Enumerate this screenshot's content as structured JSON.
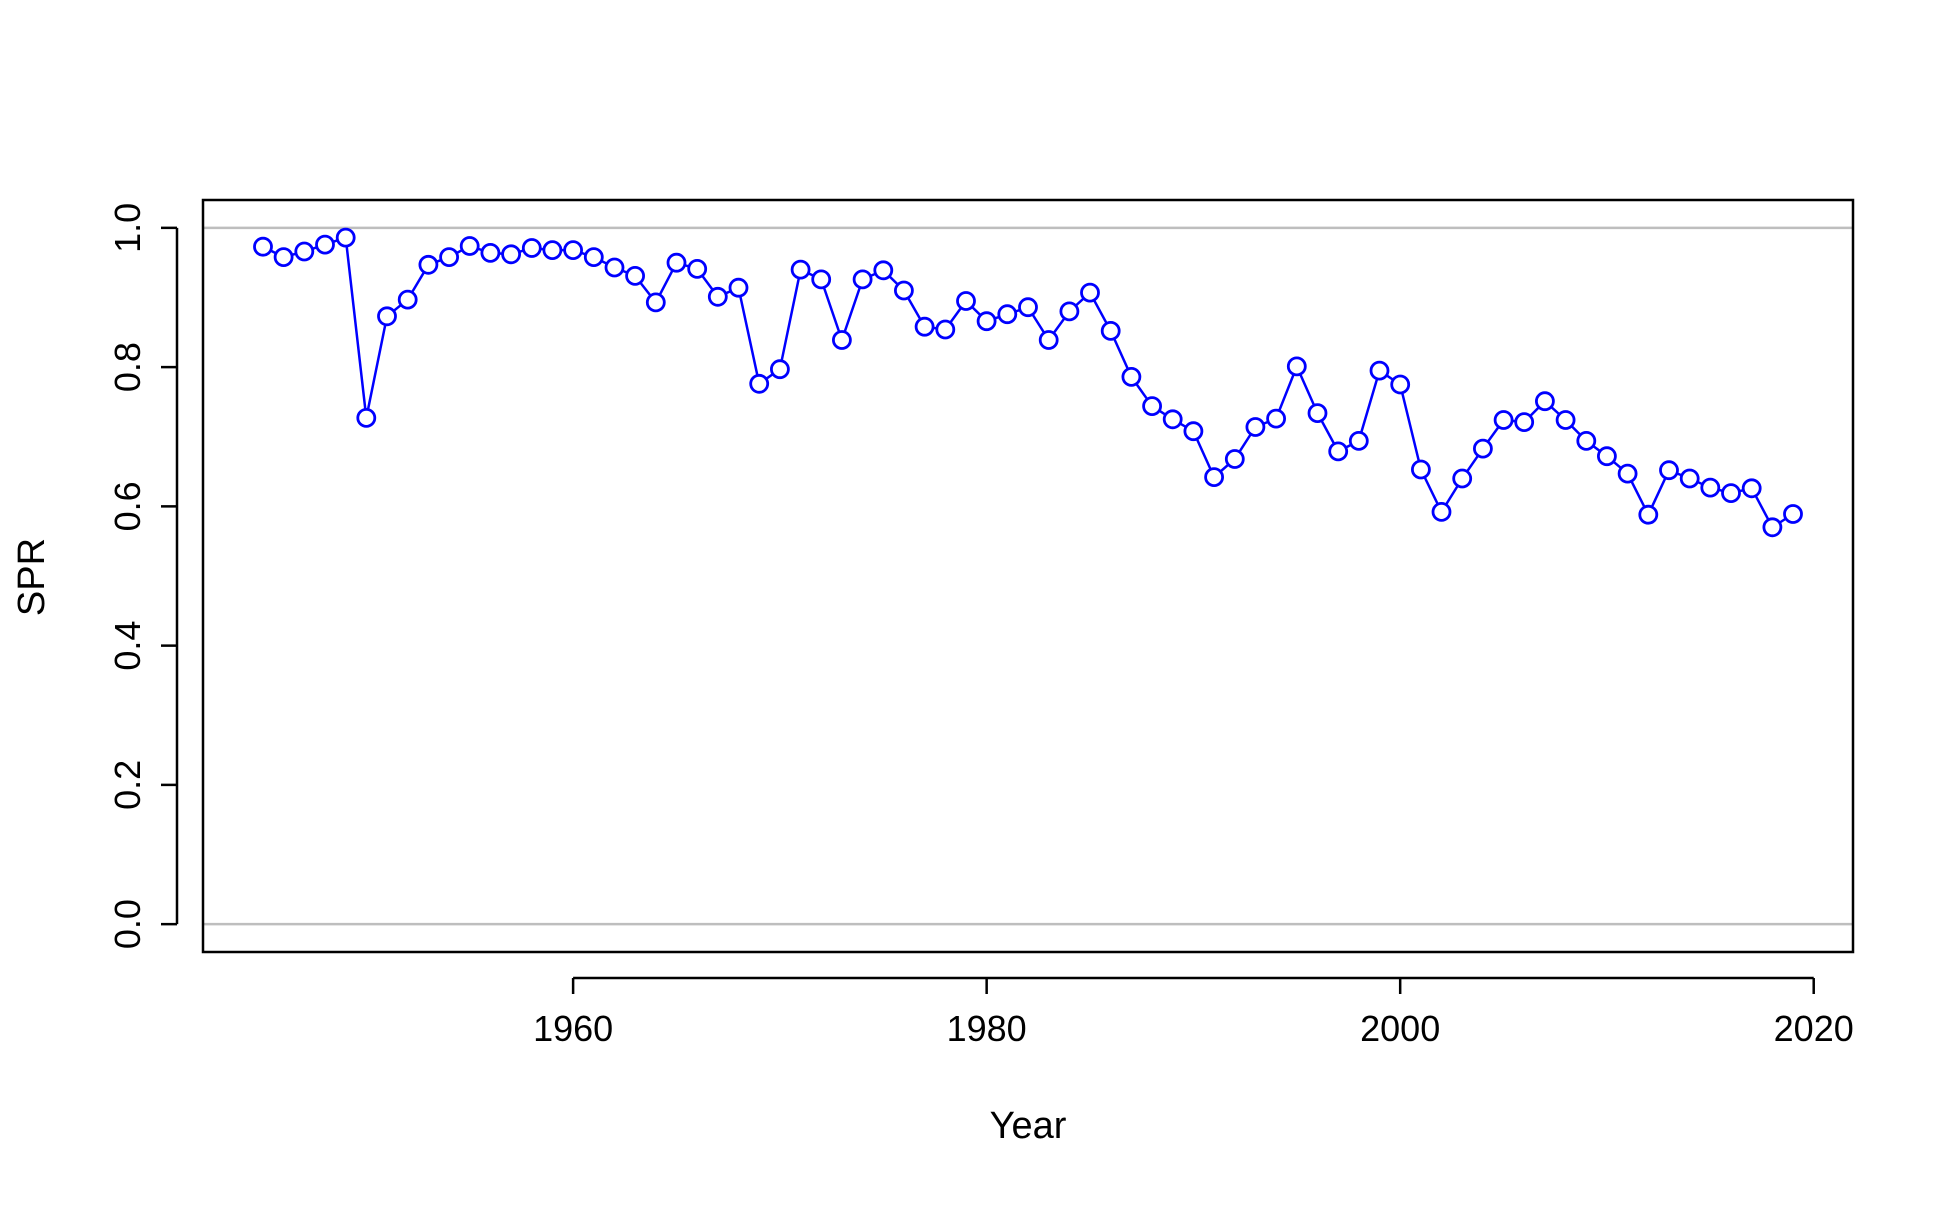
{
  "chart_data": {
    "type": "line",
    "xlabel": "Year",
    "ylabel": "SPR",
    "xlim": [
      1942.1,
      2021.9
    ],
    "ylim": [
      -0.04,
      1.04
    ],
    "x_ticks": [
      1960,
      1980,
      2000,
      2020
    ],
    "x_tick_labels": [
      "1960",
      "1980",
      "2000",
      "2020"
    ],
    "y_ticks": [
      0.0,
      0.2,
      0.4,
      0.6,
      0.8,
      1.0
    ],
    "y_tick_labels": [
      "0.0",
      "0.2",
      "0.4",
      "0.6",
      "0.8",
      "1.0"
    ],
    "reference_lines": [
      0.0,
      1.0
    ],
    "reference_line_color": "#bebebe",
    "grid": false,
    "markers": "open-circle",
    "series": [
      {
        "color": "#0000ff",
        "x": [
          1945,
          1946,
          1947,
          1948,
          1949,
          1950,
          1951,
          1952,
          1953,
          1954,
          1955,
          1956,
          1957,
          1958,
          1959,
          1960,
          1961,
          1962,
          1963,
          1964,
          1965,
          1966,
          1967,
          1968,
          1969,
          1970,
          1971,
          1972,
          1973,
          1974,
          1975,
          1976,
          1977,
          1978,
          1979,
          1980,
          1981,
          1982,
          1983,
          1984,
          1985,
          1986,
          1987,
          1988,
          1989,
          1990,
          1991,
          1992,
          1993,
          1994,
          1995,
          1996,
          1997,
          1998,
          1999,
          2000,
          2001,
          2002,
          2003,
          2004,
          2005,
          2006,
          2007,
          2008,
          2009,
          2010,
          2011,
          2012,
          2013,
          2014,
          2015,
          2016,
          2017,
          2018,
          2019
        ],
        "values": [
          0.973,
          0.958,
          0.966,
          0.976,
          0.986,
          0.727,
          0.873,
          0.897,
          0.947,
          0.958,
          0.974,
          0.964,
          0.962,
          0.971,
          0.968,
          0.968,
          0.958,
          0.943,
          0.931,
          0.893,
          0.95,
          0.941,
          0.901,
          0.914,
          0.776,
          0.797,
          0.94,
          0.926,
          0.839,
          0.926,
          0.939,
          0.91,
          0.858,
          0.854,
          0.895,
          0.866,
          0.876,
          0.886,
          0.839,
          0.88,
          0.907,
          0.852,
          0.786,
          0.744,
          0.725,
          0.708,
          0.642,
          0.668,
          0.714,
          0.726,
          0.801,
          0.734,
          0.679,
          0.694,
          0.795,
          0.775,
          0.653,
          0.592,
          0.64,
          0.683,
          0.724,
          0.721,
          0.751,
          0.724,
          0.694,
          0.672,
          0.647,
          0.588,
          0.652,
          0.64,
          0.627,
          0.619,
          0.626,
          0.57,
          0.589
        ]
      }
    ]
  }
}
